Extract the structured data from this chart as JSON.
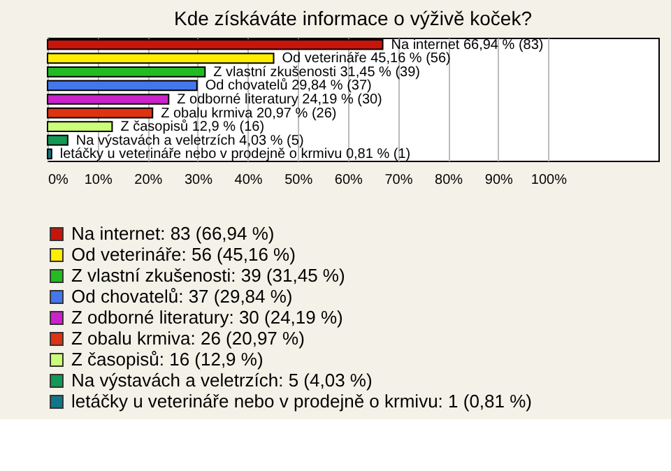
{
  "chart_data": {
    "type": "bar",
    "orientation": "horizontal",
    "title": "Kde získáváte informace o výživě koček?",
    "categories": [
      null,
      null,
      null,
      null,
      null,
      null,
      null,
      null,
      null
    ],
    "series": [
      {
        "name": "Na internet: 83 (66,94 %)",
        "color": "#c8150c",
        "values": [
          66.94,
          null,
          null,
          null,
          null,
          null,
          null,
          null,
          null
        ],
        "value_labels": [
          "Na internet 66,94 % (83)",
          null,
          null,
          null,
          null,
          null,
          null,
          null,
          null
        ]
      },
      {
        "name": "Od veterináře: 56 (45,16 %)",
        "color": "#ffee00",
        "values": [
          null,
          45.16,
          null,
          null,
          null,
          null,
          null,
          null,
          null
        ],
        "value_labels": [
          null,
          "Od veterináře 45,16 % (56)",
          null,
          null,
          null,
          null,
          null,
          null,
          null
        ]
      },
      {
        "name": "Z vlastní zkušenosti: 39 (31,45 %)",
        "color": "#22bb22",
        "values": [
          null,
          null,
          31.45,
          null,
          null,
          null,
          null,
          null,
          null
        ],
        "value_labels": [
          null,
          null,
          "Z vlastní zkušenosti 31,45 % (39)",
          null,
          null,
          null,
          null,
          null,
          null
        ]
      },
      {
        "name": "Od chovatelů: 37 (29,84 %)",
        "color": "#4477ee",
        "values": [
          null,
          null,
          null,
          29.84,
          null,
          null,
          null,
          null,
          null
        ],
        "value_labels": [
          null,
          null,
          null,
          "Od chovatelů 29,84 % (37)",
          null,
          null,
          null,
          null,
          null
        ]
      },
      {
        "name": "Z odborné literatury: 30 (24,19 %)",
        "color": "#cc22cc",
        "values": [
          null,
          null,
          null,
          null,
          24.19,
          null,
          null,
          null,
          null
        ],
        "value_labels": [
          null,
          null,
          null,
          null,
          "Z odborné literatury 24,19 % (30)",
          null,
          null,
          null,
          null
        ]
      },
      {
        "name": "Z obalu krmiva: 26 (20,97 %)",
        "color": "#dd3311",
        "values": [
          null,
          null,
          null,
          null,
          null,
          20.97,
          null,
          null,
          null
        ],
        "value_labels": [
          null,
          null,
          null,
          null,
          null,
          "Z obalu krmiva 20,97 % (26)",
          null,
          null,
          null
        ]
      },
      {
        "name": "Z časopisů: 16 (12,9 %)",
        "color": "#ccff77",
        "values": [
          null,
          null,
          null,
          null,
          null,
          null,
          12.9,
          null,
          null
        ],
        "value_labels": [
          null,
          null,
          null,
          null,
          null,
          null,
          "Z časopisů 12,9 % (16)",
          null,
          null
        ]
      },
      {
        "name": "Na výstavách a veletrzích: 5 (4,03 %)",
        "color": "#119955",
        "values": [
          null,
          null,
          null,
          null,
          null,
          null,
          null,
          4.03,
          null
        ],
        "value_labels": [
          null,
          null,
          null,
          null,
          null,
          null,
          null,
          "Na výstavách a veletrzích 4,03 % (5)",
          null
        ]
      },
      {
        "name": "letáčky u veterináře nebo v prodejně o krmivu: 1 (0,81 %)",
        "color": "#117788",
        "values": [
          null,
          null,
          null,
          null,
          null,
          null,
          null,
          null,
          0.81
        ],
        "value_labels": [
          null,
          null,
          null,
          null,
          null,
          null,
          null,
          null,
          "letáčky u veterináře nebo v prodejně o krmivu 0,81 % (1)"
        ]
      }
    ],
    "xlim": [
      0,
      122
    ],
    "xticks": [
      {
        "value": 0,
        "label": "0%"
      },
      {
        "value": 10,
        "label": "10%"
      },
      {
        "value": 20,
        "label": "20%"
      },
      {
        "value": 30,
        "label": "30%"
      },
      {
        "value": 40,
        "label": "40%"
      },
      {
        "value": 50,
        "label": "50%"
      },
      {
        "value": 60,
        "label": "60%"
      },
      {
        "value": 70,
        "label": "70%"
      },
      {
        "value": 80,
        "label": "80%"
      },
      {
        "value": 90,
        "label": "90%"
      },
      {
        "value": 100,
        "label": "100%"
      }
    ],
    "tick_labels": "x",
    "grid": "x",
    "legend": "bottom"
  }
}
